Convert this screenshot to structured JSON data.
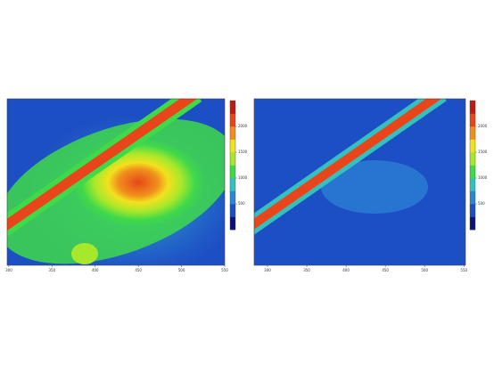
{
  "chart_data": [
    {
      "type": "contour",
      "xlim": [
        298,
        550
      ],
      "xticks": [
        300,
        350,
        400,
        450,
        500,
        550
      ],
      "zlim": [
        0,
        2500
      ],
      "zticks": [
        500,
        1000,
        1500,
        2000
      ],
      "colormap": [
        "#0e1278",
        "#1d4fc4",
        "#2c86d6",
        "#35c0c0",
        "#3fd94a",
        "#a8e82a",
        "#f2e11e",
        "#f0901c",
        "#e8461a",
        "#c01a12"
      ]
    },
    {
      "type": "contour",
      "xlim": [
        283,
        552
      ],
      "xticks": [
        300,
        350,
        400,
        450,
        500,
        550
      ],
      "zlim": [
        0,
        2500
      ],
      "zticks": [
        500,
        1000,
        1500,
        2000
      ],
      "colormap": [
        "#0e1278",
        "#1d4fc4",
        "#2c86d6",
        "#35c0c0",
        "#3fd94a",
        "#a8e82a",
        "#f2e11e",
        "#f0901c",
        "#e8461a",
        "#c01a12"
      ]
    }
  ]
}
